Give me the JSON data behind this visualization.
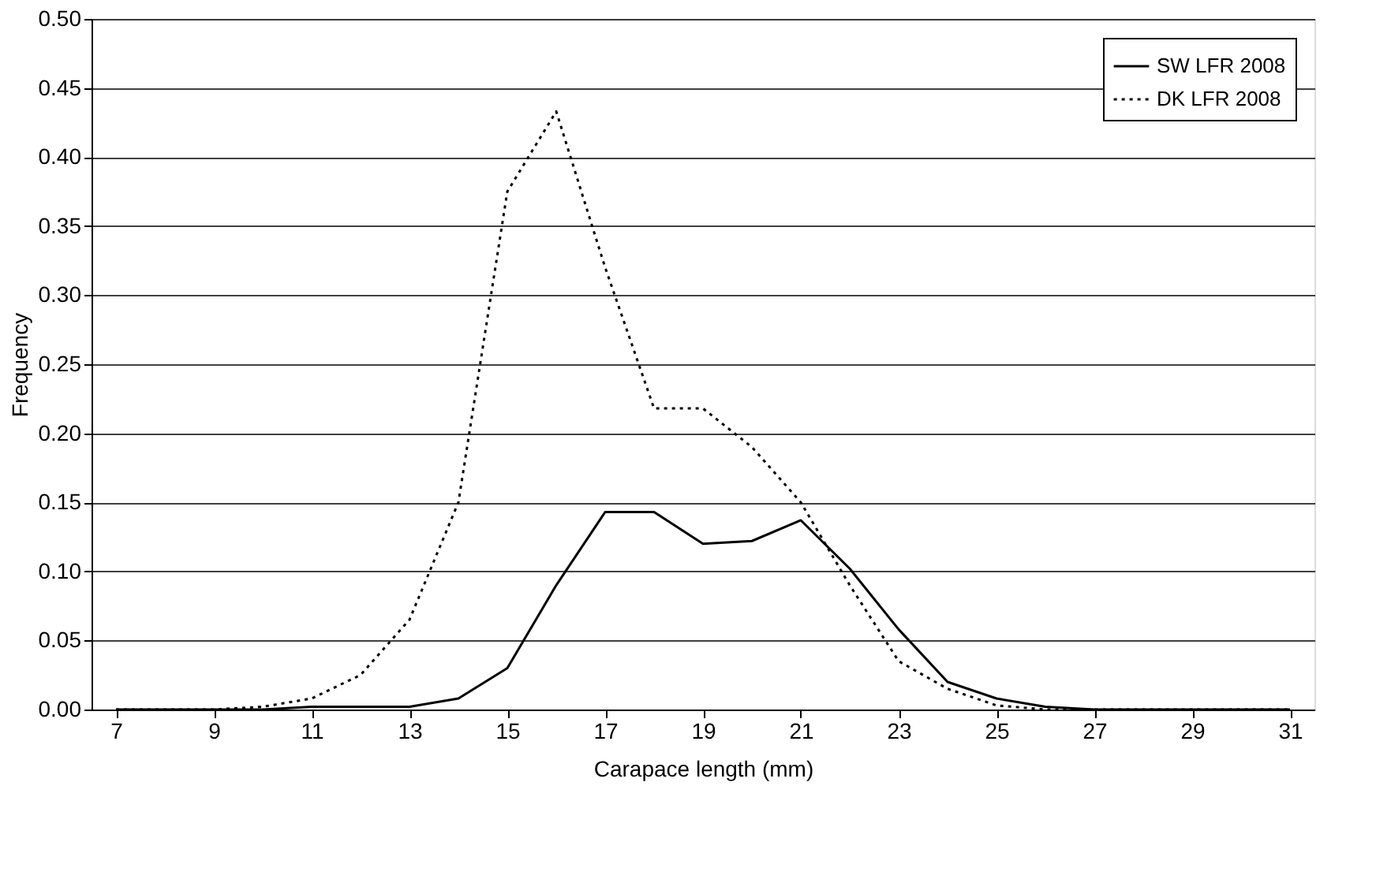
{
  "chart_data": {
    "type": "line",
    "xlabel": "Carapace length (mm)",
    "ylabel": "Frequency",
    "x": [
      7,
      8,
      9,
      10,
      11,
      12,
      13,
      14,
      15,
      16,
      17,
      18,
      19,
      20,
      21,
      22,
      23,
      24,
      25,
      26,
      27,
      28,
      29,
      30,
      31
    ],
    "series": [
      {
        "name": "SW LFR 2008",
        "color": "#000000",
        "line_style": "solid",
        "values": [
          0,
          0,
          0,
          0,
          0.002,
          0.002,
          0.002,
          0.008,
          0.03,
          0.09,
          0.143,
          0.143,
          0.12,
          0.122,
          0.137,
          0.102,
          0.058,
          0.02,
          0.008,
          0.002,
          0,
          0,
          0,
          0,
          0
        ]
      },
      {
        "name": "DK LFR 2008",
        "color": "#000000",
        "line_style": "dotted",
        "values": [
          0,
          0,
          0,
          0.002,
          0.008,
          0.025,
          0.065,
          0.15,
          0.375,
          0.433,
          0.32,
          0.218,
          0.218,
          0.19,
          0.15,
          0.09,
          0.035,
          0.015,
          0.003,
          0,
          0,
          0,
          0,
          0,
          0
        ]
      }
    ],
    "xlim": [
      6.5,
      31.5
    ],
    "xticks": [
      7,
      9,
      11,
      13,
      15,
      17,
      19,
      21,
      23,
      25,
      27,
      29,
      31
    ],
    "ylim": [
      0,
      0.5
    ],
    "yticks": [
      {
        "value": 0,
        "label": "0.00"
      },
      {
        "value": 0.05,
        "label": "0.05"
      },
      {
        "value": 0.1,
        "label": "0.10"
      },
      {
        "value": 0.15,
        "label": "0.15"
      },
      {
        "value": 0.2,
        "label": "0.20"
      },
      {
        "value": 0.25,
        "label": "0.25"
      },
      {
        "value": 0.3,
        "label": "0.30"
      },
      {
        "value": 0.35,
        "label": "0.35"
      },
      {
        "value": 0.4,
        "label": "0.40"
      },
      {
        "value": 0.45,
        "label": "0.45"
      },
      {
        "value": 0.5,
        "label": "0.50"
      }
    ],
    "grid": "y",
    "legend": "top right"
  }
}
